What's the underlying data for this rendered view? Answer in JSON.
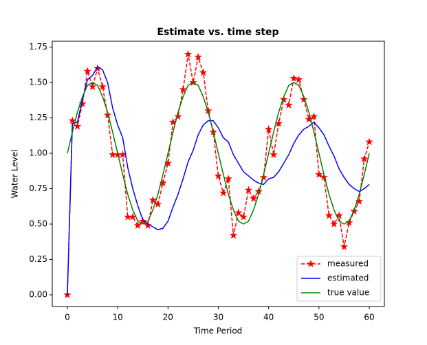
{
  "chart_data": {
    "type": "line",
    "title": "Estimate vs. time step",
    "x_label": "Time Period",
    "y_label": "Water Level",
    "x": [
      0,
      1,
      2,
      3,
      4,
      5,
      6,
      7,
      8,
      9,
      10,
      11,
      12,
      13,
      14,
      15,
      16,
      17,
      18,
      19,
      20,
      21,
      22,
      23,
      24,
      25,
      26,
      27,
      28,
      29,
      30,
      31,
      32,
      33,
      34,
      35,
      36,
      37,
      38,
      39,
      40,
      41,
      42,
      43,
      44,
      45,
      46,
      47,
      48,
      49,
      50,
      51,
      52,
      53,
      54,
      55,
      56,
      57,
      58,
      59,
      60
    ],
    "series": [
      {
        "name": "measured",
        "color": "#ff0000",
        "linestyle": "--",
        "marker": "*",
        "values": [
          0,
          1.23,
          1.19,
          1.35,
          1.58,
          1.47,
          1.6,
          1.47,
          1.27,
          0.99,
          0.99,
          0.99,
          0.55,
          0.55,
          0.49,
          0.52,
          0.49,
          0.67,
          0.64,
          0.79,
          0.93,
          1.22,
          1.26,
          1.45,
          1.7,
          1.5,
          1.68,
          1.57,
          1.3,
          1.15,
          0.84,
          0.72,
          0.82,
          0.42,
          0.58,
          0.55,
          0.74,
          0.68,
          0.73,
          0.83,
          1.17,
          0.99,
          1.21,
          1.38,
          1.34,
          1.53,
          1.52,
          1.38,
          1.24,
          1.26,
          0.85,
          0.83,
          0.56,
          0.5,
          0.56,
          0.34,
          0.51,
          0.59,
          0.66,
          0.96,
          1.08
        ]
      },
      {
        "name": "estimated",
        "color": "#0000ff",
        "linestyle": "-",
        "values": [
          0,
          1.21,
          1.22,
          1.38,
          1.52,
          1.55,
          1.61,
          1.59,
          1.5,
          1.32,
          1.2,
          1.11,
          0.9,
          0.75,
          0.63,
          0.53,
          0.5,
          0.48,
          0.46,
          0.47,
          0.52,
          0.62,
          0.71,
          0.82,
          0.94,
          1.02,
          1.13,
          1.2,
          1.23,
          1.23,
          1.18,
          1.11,
          1.08,
          0.99,
          0.93,
          0.87,
          0.84,
          0.81,
          0.79,
          0.78,
          0.82,
          0.83,
          0.87,
          0.93,
          0.99,
          1.07,
          1.13,
          1.17,
          1.19,
          1.22,
          1.18,
          1.13,
          1.05,
          0.98,
          0.89,
          0.83,
          0.78,
          0.75,
          0.73,
          0.75,
          0.78
        ]
      },
      {
        "name": "true value",
        "color": "#008000",
        "linestyle": "-",
        "values": [
          1.0,
          1.15,
          1.29,
          1.4,
          1.48,
          1.5,
          1.48,
          1.4,
          1.29,
          1.15,
          1.0,
          0.85,
          0.71,
          0.6,
          0.52,
          0.5,
          0.52,
          0.6,
          0.71,
          0.85,
          1.0,
          1.15,
          1.29,
          1.4,
          1.48,
          1.5,
          1.48,
          1.4,
          1.29,
          1.15,
          1.0,
          0.85,
          0.71,
          0.6,
          0.52,
          0.5,
          0.52,
          0.6,
          0.71,
          0.85,
          1.0,
          1.15,
          1.29,
          1.4,
          1.48,
          1.5,
          1.48,
          1.4,
          1.29,
          1.15,
          1.0,
          0.85,
          0.71,
          0.6,
          0.52,
          0.5,
          0.52,
          0.6,
          0.71,
          0.85,
          1.0
        ]
      }
    ],
    "xlim": [
      -3,
      63
    ],
    "ylim": [
      -0.0825,
      1.7915
    ],
    "xticks": [
      0,
      10,
      20,
      30,
      40,
      50,
      60
    ],
    "yticks": [
      {
        "value": 0,
        "label": "0.00"
      },
      0.25,
      {
        "value": 0.5,
        "label": "0.50"
      },
      0.75,
      {
        "value": 1,
        "label": "1.00"
      },
      1.25,
      {
        "value": 1.5,
        "label": "1.50"
      },
      1.75
    ],
    "legend": "lower right",
    "grid": false
  }
}
